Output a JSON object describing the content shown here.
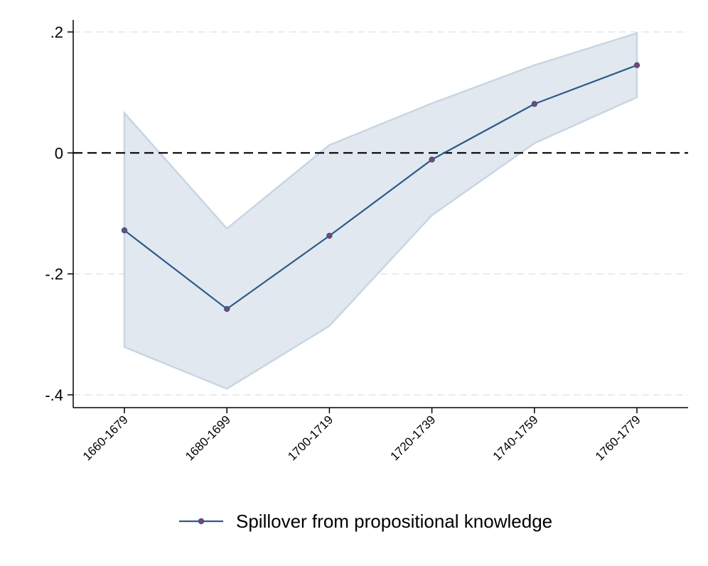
{
  "chart_data": {
    "type": "line",
    "categories": [
      "1660-1679",
      "1680-1699",
      "1700-1719",
      "1720-1739",
      "1740-1759",
      "1760-1779"
    ],
    "series": [
      {
        "name": "Spillover from propositional knowledge",
        "values": [
          -0.128,
          -0.258,
          -0.137,
          -0.011,
          0.081,
          0.145
        ],
        "ci_upper": [
          0.066,
          -0.125,
          0.013,
          0.082,
          0.145,
          0.198
        ],
        "ci_lower": [
          -0.321,
          -0.39,
          -0.286,
          -0.103,
          0.016,
          0.092
        ],
        "color": "#2b5a8c",
        "marker_color": "#8e3f6e"
      }
    ],
    "ci_fill_color": "#e2e8ef",
    "ci_edge_color": "#c8d6e3",
    "ylim": [
      -0.42,
      0.22
    ],
    "yticks": [
      0.2,
      0,
      -0.2,
      -0.4
    ],
    "ytick_labels": [
      ".2",
      "0",
      "-.2",
      "-.4"
    ],
    "reference_line": {
      "y": 0,
      "style": "dashed"
    },
    "grid": "horizontal-dashed",
    "legend_position": "bottom",
    "title": "",
    "xlabel": "",
    "ylabel": ""
  }
}
